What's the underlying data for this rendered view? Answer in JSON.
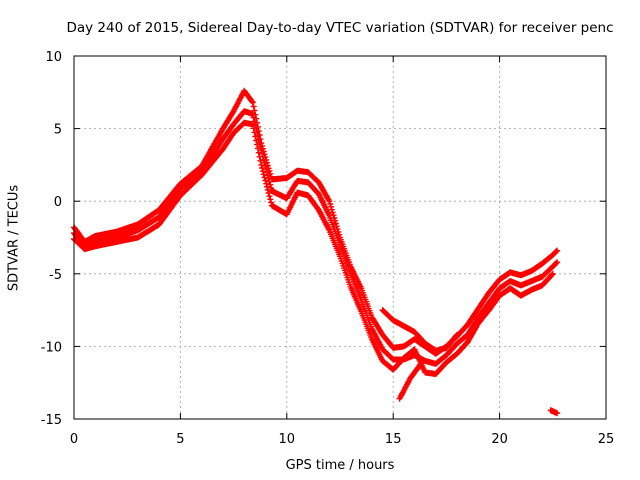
{
  "chart_data": {
    "type": "scatter",
    "title": "Day 240 of 2015, Sidereal Day-to-day VTEC variation (SDTVAR) for receiver penc",
    "xlabel": "GPS time / hours",
    "ylabel": "SDTVAR / TECUs",
    "xlim": [
      0,
      25
    ],
    "ylim": [
      -15,
      10
    ],
    "xticks": [
      0,
      5,
      10,
      15,
      20,
      25
    ],
    "yticks": [
      -15,
      -10,
      -5,
      0,
      5,
      10
    ],
    "grid": true,
    "series": [
      {
        "name": "SDTVAR",
        "color": "#ff0000",
        "marker": "plus",
        "tracks": [
          [
            [
              0,
              -1.8
            ],
            [
              0.5,
              -2.8
            ],
            [
              1,
              -2.4
            ],
            [
              2,
              -2.1
            ],
            [
              3,
              -1.6
            ],
            [
              4,
              -0.6
            ],
            [
              5,
              1.2
            ],
            [
              6,
              2.4
            ],
            [
              7,
              5.0
            ],
            [
              7.5,
              6.2
            ],
            [
              8,
              7.6
            ],
            [
              8.4,
              6.8
            ],
            [
              8.8,
              4.0
            ],
            [
              9.3,
              1.5
            ],
            [
              10,
              1.6
            ],
            [
              10.5,
              2.1
            ],
            [
              11,
              2.0
            ],
            [
              11.5,
              1.3
            ],
            [
              12,
              0.0
            ],
            [
              12.5,
              -2.5
            ],
            [
              13,
              -4.5
            ],
            [
              13.5,
              -6.0
            ],
            [
              14,
              -8.0
            ],
            [
              14.5,
              -9.2
            ],
            [
              15,
              -10.1
            ],
            [
              15.5,
              -10.0
            ],
            [
              16,
              -9.5
            ],
            [
              16.5,
              -10.0
            ],
            [
              17,
              -10.5
            ],
            [
              17.5,
              -10.0
            ],
            [
              18,
              -9.3
            ],
            [
              18.5,
              -8.5
            ],
            [
              19,
              -7.4
            ],
            [
              19.5,
              -6.3
            ],
            [
              20,
              -5.4
            ],
            [
              20.5,
              -4.9
            ],
            [
              21,
              -5.1
            ],
            [
              21.5,
              -4.8
            ],
            [
              22,
              -4.3
            ],
            [
              22.5,
              -3.7
            ],
            [
              22.7,
              -3.4
            ]
          ],
          [
            [
              0,
              -2.2
            ],
            [
              0.5,
              -3.1
            ],
            [
              1,
              -2.8
            ],
            [
              2,
              -2.5
            ],
            [
              3,
              -2.0
            ],
            [
              4,
              -1.1
            ],
            [
              5,
              0.9
            ],
            [
              6,
              2.0
            ],
            [
              7,
              4.3
            ],
            [
              7.5,
              5.3
            ],
            [
              8,
              6.2
            ],
            [
              8.4,
              6.0
            ],
            [
              8.8,
              3.5
            ],
            [
              9.3,
              0.7
            ],
            [
              10,
              0.2
            ],
            [
              10.5,
              1.4
            ],
            [
              11,
              1.3
            ],
            [
              11.5,
              0.5
            ],
            [
              12,
              -1.0
            ],
            [
              12.5,
              -3.0
            ],
            [
              13,
              -5.0
            ],
            [
              13.5,
              -6.8
            ],
            [
              14,
              -8.8
            ],
            [
              14.5,
              -10.2
            ],
            [
              15,
              -10.9
            ],
            [
              15.5,
              -10.9
            ],
            [
              16,
              -10.6
            ],
            [
              16.5,
              -11.0
            ],
            [
              17,
              -11.2
            ],
            [
              17.5,
              -10.6
            ],
            [
              18,
              -9.8
            ],
            [
              18.5,
              -9.2
            ],
            [
              19,
              -8.0
            ],
            [
              19.5,
              -7.0
            ],
            [
              20,
              -6.0
            ],
            [
              20.5,
              -5.5
            ],
            [
              21,
              -5.8
            ],
            [
              21.5,
              -5.5
            ],
            [
              22,
              -5.2
            ],
            [
              22.5,
              -4.5
            ],
            [
              22.7,
              -4.2
            ]
          ],
          [
            [
              0,
              -2.6
            ],
            [
              0.5,
              -3.3
            ],
            [
              1,
              -3.1
            ],
            [
              2,
              -2.8
            ],
            [
              3,
              -2.5
            ],
            [
              4,
              -1.6
            ],
            [
              5,
              0.4
            ],
            [
              6,
              1.8
            ],
            [
              7,
              3.6
            ],
            [
              7.5,
              4.7
            ],
            [
              8,
              5.4
            ],
            [
              8.4,
              5.3
            ],
            [
              8.8,
              2.5
            ],
            [
              9.3,
              -0.3
            ],
            [
              10,
              -0.9
            ],
            [
              10.5,
              0.6
            ],
            [
              11,
              0.4
            ],
            [
              11.5,
              -0.6
            ],
            [
              12,
              -2.0
            ],
            [
              12.5,
              -3.8
            ],
            [
              13,
              -5.9
            ],
            [
              13.5,
              -7.6
            ],
            [
              14,
              -9.5
            ],
            [
              14.5,
              -11.0
            ],
            [
              15,
              -11.6
            ],
            [
              15.5,
              -10.8
            ],
            [
              16,
              -10.2
            ],
            [
              16.5,
              -11.8
            ],
            [
              17,
              -11.9
            ],
            [
              17.5,
              -11.1
            ],
            [
              18,
              -10.5
            ],
            [
              18.5,
              -9.7
            ],
            [
              19,
              -8.4
            ],
            [
              19.5,
              -7.5
            ],
            [
              20,
              -6.5
            ],
            [
              20.5,
              -6.0
            ],
            [
              21,
              -6.5
            ],
            [
              21.5,
              -6.1
            ],
            [
              22,
              -5.8
            ],
            [
              22.5,
              -5.0
            ]
          ],
          [
            [
              14.5,
              -7.5
            ],
            [
              15,
              -8.2
            ],
            [
              15.5,
              -8.6
            ],
            [
              16,
              -9.0
            ],
            [
              16.5,
              -9.8
            ],
            [
              17,
              -10.3
            ],
            [
              17.5,
              -10.1
            ],
            [
              18,
              -9.2
            ]
          ],
          [
            [
              15.3,
              -13.6
            ],
            [
              15.8,
              -12.2
            ],
            [
              16.3,
              -11.2
            ]
          ],
          [
            [
              22.4,
              -14.4
            ],
            [
              22.7,
              -14.6
            ]
          ]
        ]
      }
    ]
  }
}
